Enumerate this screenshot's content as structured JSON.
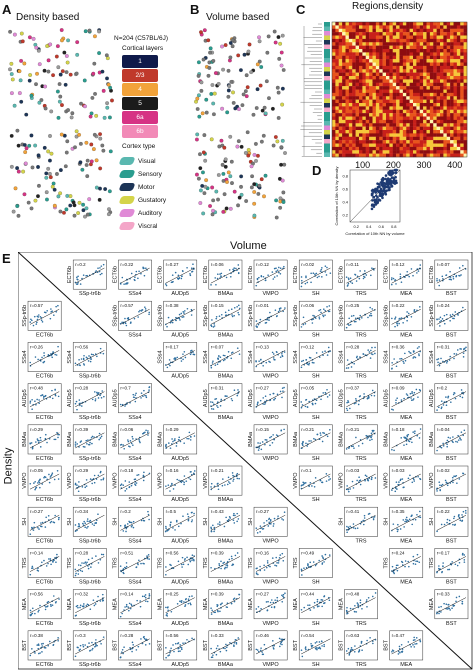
{
  "panels": {
    "A": {
      "label": "A",
      "title": "Density based"
    },
    "B": {
      "label": "B",
      "title": "Volume based"
    },
    "C": {
      "label": "C",
      "title": "Regions,density",
      "ticks": [
        "100",
        "200",
        "300",
        "400"
      ]
    },
    "D": {
      "label": "D",
      "ylabel": "Correlation of 10th NN by density",
      "xlabel": "Correlation of 10th NN by volume",
      "xticks": [
        "0.2",
        "0.4",
        "0.6",
        "0.8"
      ],
      "yticks": [
        "0.2",
        "0.4",
        "0.6",
        "0.8"
      ]
    },
    "E": {
      "label": "E",
      "top_label": "Volume",
      "side_label": "Density"
    }
  },
  "legend": {
    "strain": "N=204 (C57BL/6J)",
    "layers_title": "Cortical layers",
    "layers": [
      {
        "name": "1",
        "color": "#0f1a4a"
      },
      {
        "name": "2/3",
        "color": "#c0392b"
      },
      {
        "name": "4",
        "color": "#f2a33a"
      },
      {
        "name": "5",
        "color": "#1b1b1b"
      },
      {
        "name": "6a",
        "color": "#d63384"
      },
      {
        "name": "6b",
        "color": "#f28ab7"
      }
    ],
    "cortex_title": "Cortex type",
    "cortex": [
      {
        "name": "Visual",
        "color": "#5ab8b0"
      },
      {
        "name": "Sensory",
        "color": "#2a9d8f"
      },
      {
        "name": "Motor",
        "color": "#1d3557"
      },
      {
        "name": "Gustatory",
        "color": "#d4d44a"
      },
      {
        "name": "Auditory",
        "color": "#e08ad6"
      },
      {
        "name": "Viscral",
        "color": "#f4a6c8"
      }
    ]
  },
  "matrix": {
    "regions": [
      "ECT6b",
      "SSp-tr6b",
      "SSs4",
      "AUDp5",
      "BMAa",
      "VMPO",
      "SH",
      "TRS",
      "MEA",
      "BST"
    ],
    "upper_coefs": [
      "0.2",
      "0.22",
      "0.27",
      "0.06",
      "0.12",
      "0.02",
      "0.11",
      "0.12",
      "0.07",
      "0.57",
      "0.38",
      "0.15",
      "0.01",
      "0.06",
      "0.25",
      "0.22",
      "0.24",
      "0.17",
      "0.07",
      "0.13",
      "0.12",
      "0.28",
      "0.36",
      "0.31",
      "0.31",
      "0.27",
      "0.05",
      "0.37",
      "0.09",
      "0.2",
      "0.15",
      "0.21",
      "0.21",
      "0.18",
      "0.04",
      "0.1",
      "0.03",
      "0.03",
      "0.02",
      "0.41",
      "0.35",
      "0.22",
      "0.24",
      "0.17",
      "0.33"
    ],
    "lower_coefs": [
      "0.57",
      "0.26",
      "0.56",
      "0.48",
      "0.28",
      "0.7",
      "0.29",
      "0.39",
      "0.06",
      "0.29",
      "0.05",
      "0.29",
      "0.18",
      "0.16",
      "0.21",
      "0.27",
      "0.34",
      "0.2",
      "0.5",
      "0.43",
      "0.27",
      "0.14",
      "0.28",
      "0.51",
      "0.56",
      "0.39",
      "0.16",
      "0.49",
      "0.56",
      "0.32",
      "0.14",
      "0.25",
      "0.39",
      "0.27",
      "0.44",
      "0.48",
      "0.38",
      "0.3",
      "0.28",
      "0.56",
      "0.33",
      "0.46",
      "0.54",
      "0.63",
      "0.47"
    ],
    "coef_prefix": "r=",
    "point_color": "#2e6fa0"
  }
}
